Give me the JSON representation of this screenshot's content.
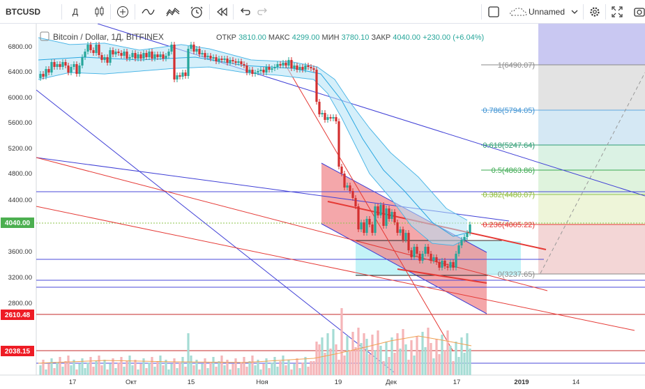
{
  "toolbar": {
    "symbol": "BTCUSD",
    "interval": "Д",
    "layout_name": "Unnamed",
    "icons": [
      "candles-icon",
      "add-indicator-icon",
      "compare-icon",
      "indicators-icon",
      "alert-icon",
      "replay-icon",
      "undo-icon",
      "redo-icon",
      "layout-square-icon",
      "cloud-icon",
      "chevron-down-icon",
      "gear-icon",
      "fullscreen-icon",
      "snapshot-icon"
    ]
  },
  "legend": {
    "title": "Bitcoin / Dollar, 1Д, BITFINEX",
    "open_label": "ОТКР",
    "open": "3810.00",
    "high_label": "МАКС",
    "high": "4299.00",
    "low_label": "МИН",
    "low": "3780.10",
    "close_label": "ЗАКР",
    "close": "4040.00",
    "change": "+230.00 (+6.04%)"
  },
  "price_axis": {
    "ticks": [
      "6800.00",
      "6400.00",
      "6000.00",
      "5600.00",
      "5200.00",
      "4800.00",
      "4400.00",
      "3600.00",
      "3200.00",
      "2800.00"
    ],
    "current_price": "4040.00",
    "price_tags": [
      "2610.48",
      "2038.15"
    ]
  },
  "time_axis": {
    "ticks": [
      "17",
      "Окт",
      "15",
      "Ноя",
      "19",
      "Дек",
      "17",
      "2019",
      "14"
    ]
  },
  "fib_labels": [
    "1(6490.07)",
    "0.786(5794.05)",
    "0.618(5247.64)",
    "0.5(4863.86)",
    "0.382(4480.07)",
    "0.236(4005.22)",
    "0(3237.65)"
  ],
  "colors": {
    "up_candle": "#26a69a",
    "down_candle": "#d32f2f",
    "red_tag": "#ee1c25",
    "green_tag": "#4caf50",
    "blue_line": "#3f3fd6",
    "red_line": "#e53935"
  }
}
